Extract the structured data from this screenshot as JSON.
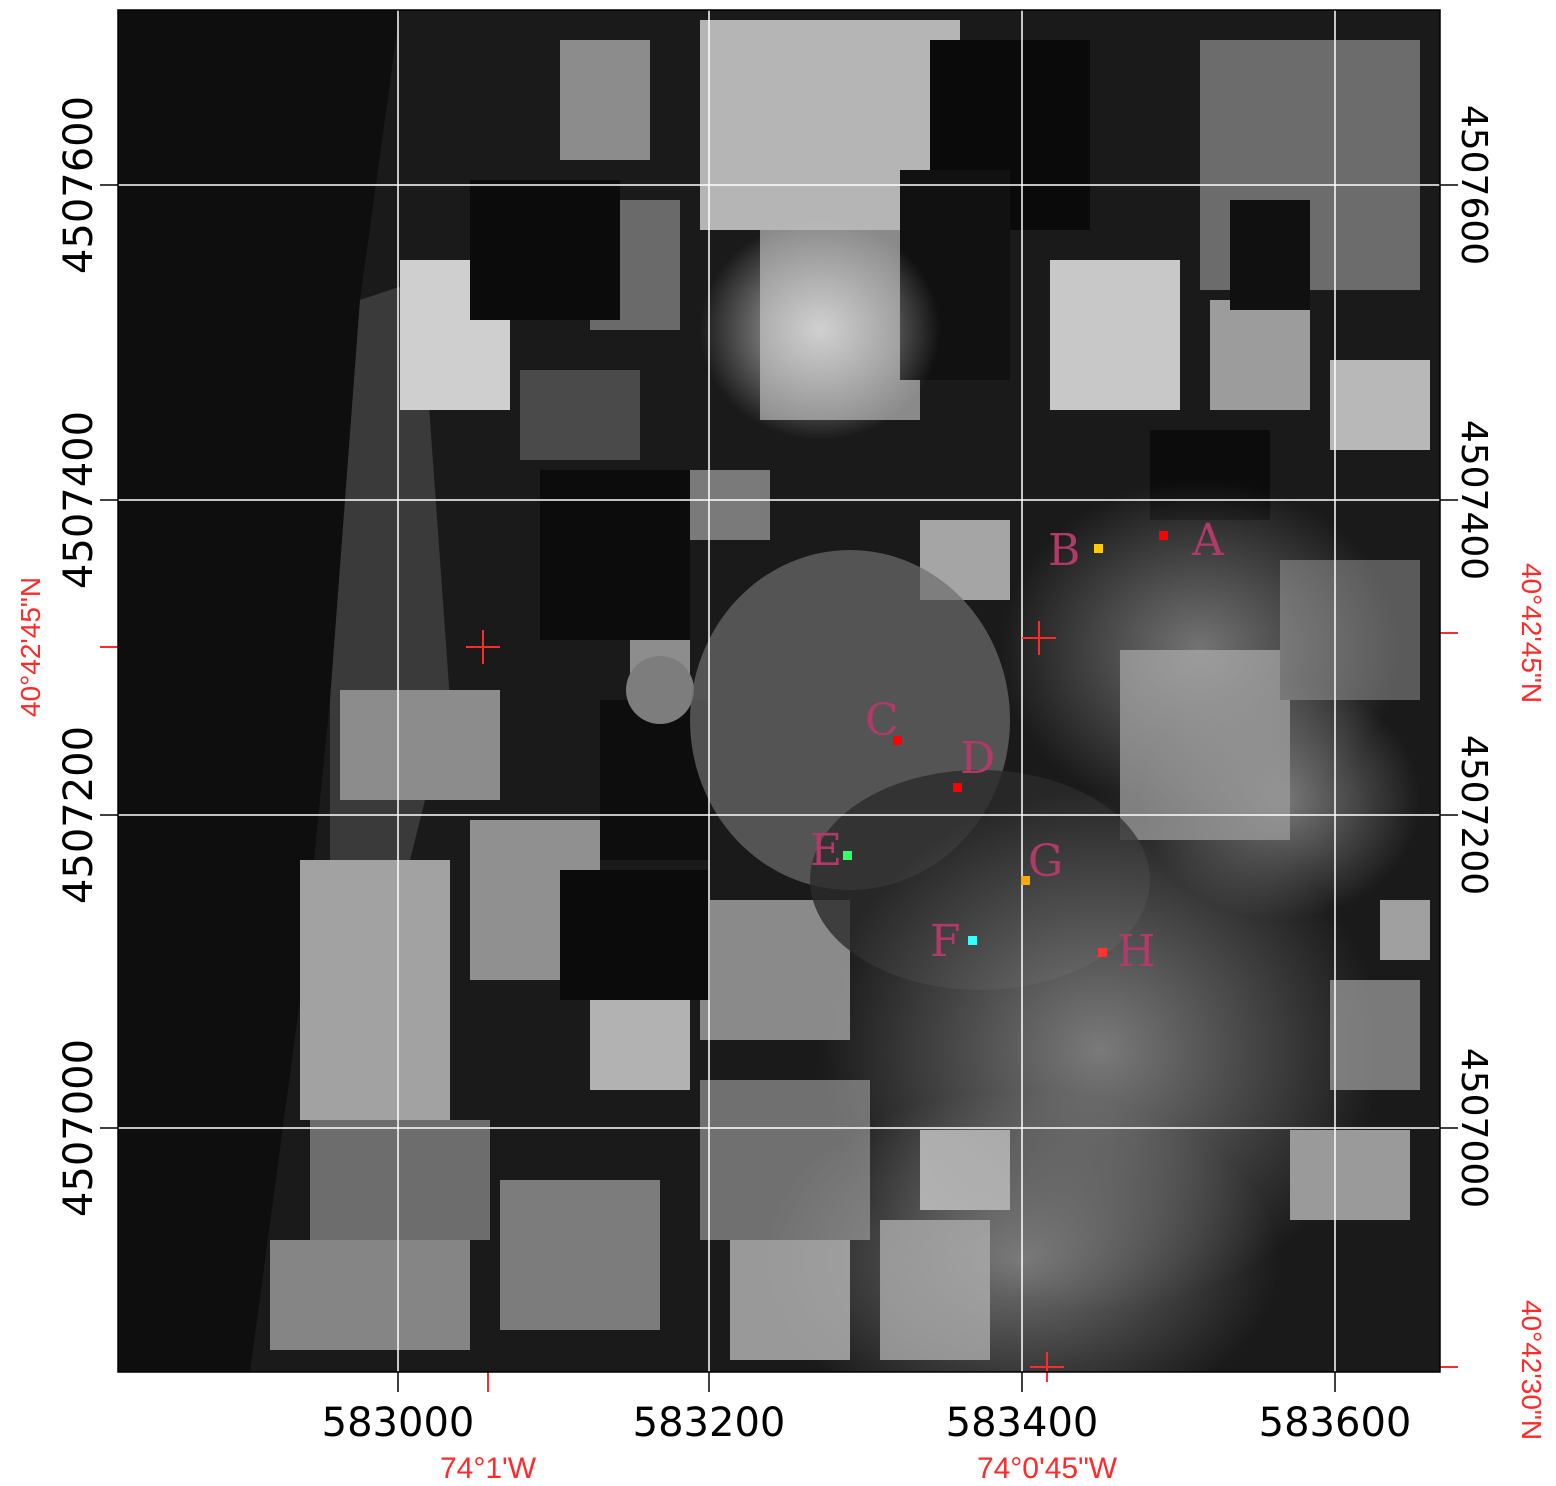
{
  "colors": {
    "grid": "#ffffff",
    "geographic": "#ff2a2a",
    "marker_labels": "#b03a6a",
    "utm_labels": "#000000"
  },
  "utm_easting_labels": [
    "583000",
    "583200",
    "583400",
    "583600"
  ],
  "utm_northing_labels": [
    "4507600",
    "4507400",
    "4507200",
    "4507000"
  ],
  "geographic_labels": {
    "lon_1": "74°1'W",
    "lon_2": "74°0'45\"W",
    "lat_1": "40°42'45\"N",
    "lat_2": "40°42'30\"N"
  },
  "markers": [
    {
      "label": "A",
      "color": "#ff0000"
    },
    {
      "label": "B",
      "color": "#ffcc00"
    },
    {
      "label": "C",
      "color": "#ff0000"
    },
    {
      "label": "D",
      "color": "#ff0000"
    },
    {
      "label": "E",
      "color": "#33ff66"
    },
    {
      "label": "F",
      "color": "#33ffff"
    },
    {
      "label": "G",
      "color": "#ffaa00"
    },
    {
      "label": "H",
      "color": "#ff3333"
    }
  ]
}
